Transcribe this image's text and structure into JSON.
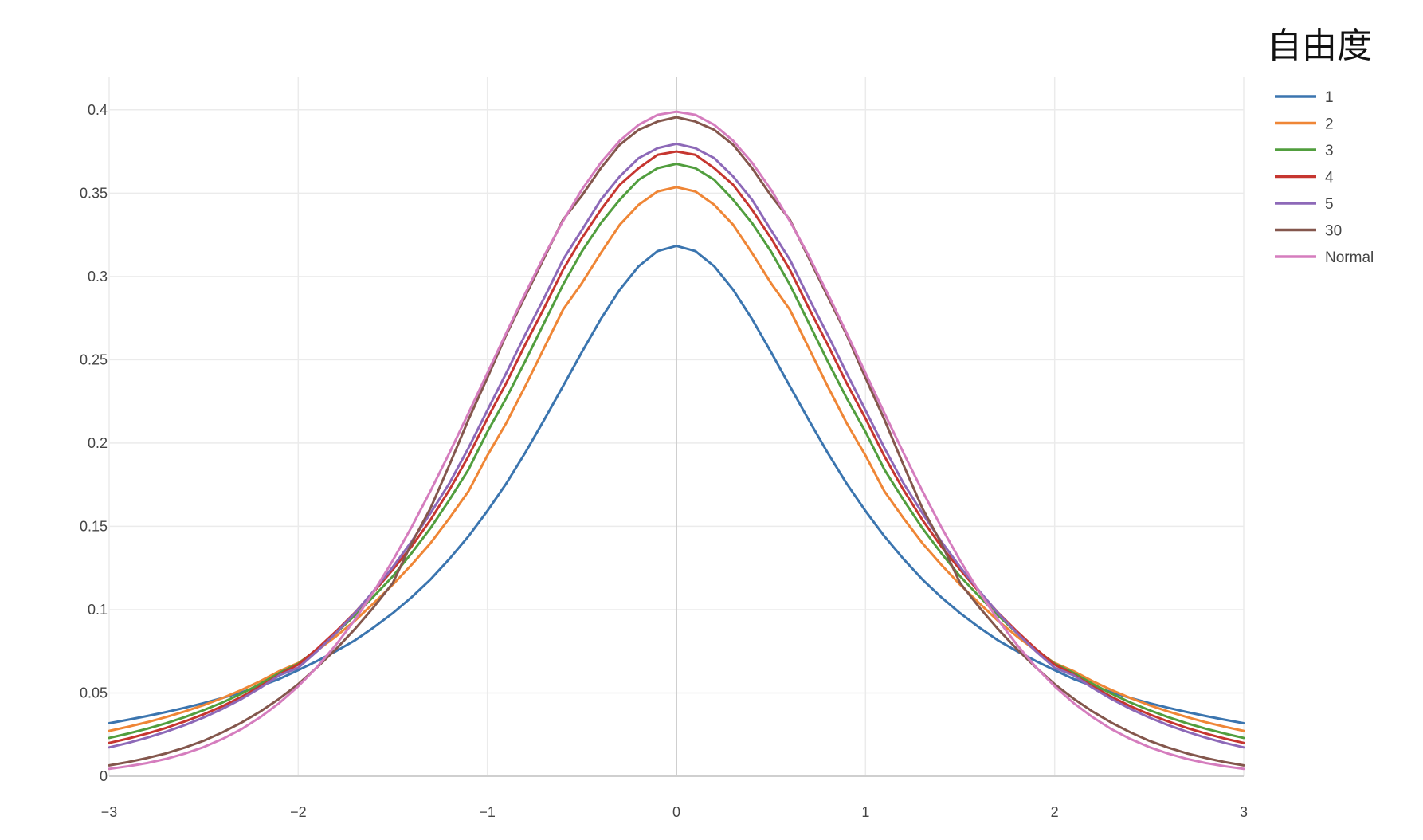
{
  "chart_data": {
    "type": "line",
    "title": "",
    "xlabel": "",
    "ylabel": "",
    "xlim": [
      -3,
      3
    ],
    "ylim": [
      0,
      0.42
    ],
    "grid": true,
    "legend": {
      "title": "自由度",
      "placement": "top-right"
    },
    "x_ticks": [
      -3,
      -2,
      -1,
      0,
      1,
      2,
      3
    ],
    "x_tick_labels": [
      "−3",
      "−2",
      "−1",
      "0",
      "1",
      "2",
      "3"
    ],
    "y_ticks": [
      0,
      0.05,
      0.1,
      0.15,
      0.2,
      0.25,
      0.3,
      0.35,
      0.4
    ],
    "y_tick_labels": [
      "0",
      "0.05",
      "0.1",
      "0.15",
      "0.2",
      "0.25",
      "0.3",
      "0.35",
      "0.4"
    ],
    "x": [
      -3,
      -2.9,
      -2.8,
      -2.7,
      -2.6,
      -2.5,
      -2.4,
      -2.3,
      -2.2,
      -2.1,
      -2,
      -1.9,
      -1.8,
      -1.7,
      -1.6,
      -1.5,
      -1.4,
      -1.3,
      -1.2,
      -1.1,
      -1,
      -0.9,
      -0.8,
      -0.7,
      -0.6,
      -0.5,
      -0.4,
      -0.3,
      -0.2,
      -0.1,
      0,
      0.1,
      0.2,
      0.3,
      0.4,
      0.5,
      0.6,
      0.7,
      0.8,
      0.9,
      1,
      1.1,
      1.2,
      1.3,
      1.4,
      1.5,
      1.6,
      1.7,
      1.8,
      1.9,
      2,
      2.1,
      2.2,
      2.3,
      2.4,
      2.5,
      2.6,
      2.7,
      2.8,
      2.9,
      3
    ],
    "series": [
      {
        "name": "1",
        "color": "#3b75af",
        "values": [
          0.0318,
          0.0339,
          0.0361,
          0.0385,
          0.0411,
          0.0439,
          0.047,
          0.0504,
          0.0542,
          0.0584,
          0.0637,
          0.0692,
          0.0751,
          0.0816,
          0.0894,
          0.0979,
          0.1075,
          0.1182,
          0.1305,
          0.144,
          0.1592,
          0.1757,
          0.1941,
          0.2138,
          0.2341,
          0.2546,
          0.2744,
          0.292,
          0.3061,
          0.3152,
          0.3183,
          0.3152,
          0.3061,
          0.292,
          0.2744,
          0.2546,
          0.2341,
          0.2138,
          0.1941,
          0.1757,
          0.1592,
          0.144,
          0.1305,
          0.1182,
          0.1075,
          0.0979,
          0.0894,
          0.0816,
          0.0751,
          0.0692,
          0.0637,
          0.0584,
          0.0542,
          0.0504,
          0.047,
          0.0439,
          0.0411,
          0.0385,
          0.0361,
          0.0339,
          0.0318
        ]
      },
      {
        "name": "2",
        "color": "#ef8636",
        "values": [
          0.0272,
          0.0297,
          0.0324,
          0.0355,
          0.0389,
          0.0427,
          0.047,
          0.0518,
          0.0571,
          0.0631,
          0.068,
          0.0755,
          0.084,
          0.0934,
          0.104,
          0.115,
          0.127,
          0.14,
          0.155,
          0.171,
          0.1925,
          0.212,
          0.234,
          0.257,
          0.28,
          0.296,
          0.314,
          0.331,
          0.343,
          0.351,
          0.3536,
          0.351,
          0.343,
          0.331,
          0.314,
          0.296,
          0.28,
          0.257,
          0.234,
          0.212,
          0.1925,
          0.171,
          0.155,
          0.14,
          0.127,
          0.115,
          0.104,
          0.0934,
          0.084,
          0.0755,
          0.068,
          0.0631,
          0.0571,
          0.0518,
          0.047,
          0.0427,
          0.0389,
          0.0355,
          0.0324,
          0.0297,
          0.0272
        ]
      },
      {
        "name": "3",
        "color": "#519e3e",
        "values": [
          0.023,
          0.0256,
          0.0285,
          0.0318,
          0.0355,
          0.0397,
          0.0443,
          0.0496,
          0.0555,
          0.062,
          0.0675,
          0.0762,
          0.086,
          0.0966,
          0.1081,
          0.12,
          0.134,
          0.149,
          0.166,
          0.184,
          0.2067,
          0.227,
          0.249,
          0.272,
          0.295,
          0.315,
          0.332,
          0.346,
          0.358,
          0.365,
          0.3676,
          0.365,
          0.358,
          0.346,
          0.332,
          0.315,
          0.295,
          0.272,
          0.249,
          0.227,
          0.2067,
          0.184,
          0.166,
          0.149,
          0.134,
          0.12,
          0.1081,
          0.0966,
          0.086,
          0.0762,
          0.0675,
          0.062,
          0.0555,
          0.0496,
          0.0443,
          0.0397,
          0.0355,
          0.0318,
          0.0285,
          0.0256,
          0.023
        ]
      },
      {
        "name": "4",
        "color": "#c63630",
        "values": [
          0.02,
          0.0226,
          0.0256,
          0.029,
          0.0329,
          0.0372,
          0.0421,
          0.0477,
          0.054,
          0.061,
          0.067,
          0.0765,
          0.087,
          0.0983,
          0.1108,
          0.124,
          0.138,
          0.154,
          0.172,
          0.192,
          0.2147,
          0.236,
          0.259,
          0.281,
          0.304,
          0.323,
          0.34,
          0.355,
          0.365,
          0.373,
          0.375,
          0.373,
          0.365,
          0.355,
          0.34,
          0.323,
          0.304,
          0.281,
          0.259,
          0.236,
          0.2147,
          0.192,
          0.172,
          0.154,
          0.138,
          0.124,
          0.1108,
          0.0983,
          0.087,
          0.0765,
          0.067,
          0.061,
          0.054,
          0.0477,
          0.0421,
          0.0372,
          0.0329,
          0.029,
          0.0256,
          0.0226,
          0.02
        ]
      },
      {
        "name": "5",
        "color": "#8d69b8",
        "values": [
          0.0173,
          0.02,
          0.0231,
          0.0267,
          0.0307,
          0.0353,
          0.0405,
          0.0464,
          0.0531,
          0.0606,
          0.0651,
          0.0751,
          0.086,
          0.098,
          0.1114,
          0.1256,
          0.141,
          0.158,
          0.176,
          0.197,
          0.2196,
          0.242,
          0.265,
          0.287,
          0.31,
          0.3279,
          0.346,
          0.36,
          0.371,
          0.377,
          0.3796,
          0.377,
          0.371,
          0.36,
          0.346,
          0.3279,
          0.31,
          0.287,
          0.265,
          0.242,
          0.2196,
          0.197,
          0.176,
          0.158,
          0.141,
          0.1256,
          0.1114,
          0.098,
          0.086,
          0.0751,
          0.0651,
          0.0606,
          0.0531,
          0.0464,
          0.0405,
          0.0353,
          0.0307,
          0.0267,
          0.0231,
          0.02,
          0.0173
        ]
      },
      {
        "name": "30",
        "color": "#84574d",
        "values": [
          0.0065,
          0.0085,
          0.0109,
          0.0137,
          0.0172,
          0.0213,
          0.0264,
          0.0322,
          0.0389,
          0.0466,
          0.0553,
          0.0654,
          0.0764,
          0.0884,
          0.1016,
          0.116,
          0.14,
          0.161,
          0.187,
          0.214,
          0.2391,
          0.265,
          0.288,
          0.311,
          0.334,
          0.3485,
          0.365,
          0.379,
          0.388,
          0.393,
          0.3956,
          0.393,
          0.388,
          0.379,
          0.365,
          0.3485,
          0.334,
          0.311,
          0.288,
          0.265,
          0.2391,
          0.214,
          0.187,
          0.161,
          0.14,
          0.116,
          0.1016,
          0.0884,
          0.0764,
          0.0654,
          0.0553,
          0.0466,
          0.0389,
          0.0322,
          0.0264,
          0.0213,
          0.0172,
          0.0137,
          0.0109,
          0.0085,
          0.0065
        ]
      },
      {
        "name": "Normal",
        "color": "#d57dbe",
        "values": [
          0.0044,
          0.006,
          0.0079,
          0.0104,
          0.0136,
          0.0175,
          0.0224,
          0.0283,
          0.0355,
          0.044,
          0.054,
          0.0656,
          0.079,
          0.094,
          0.1109,
          0.1295,
          0.1497,
          0.1714,
          0.1942,
          0.2179,
          0.242,
          0.2661,
          0.2897,
          0.3123,
          0.3332,
          0.3521,
          0.3683,
          0.3814,
          0.391,
          0.397,
          0.3989,
          0.397,
          0.391,
          0.3814,
          0.3683,
          0.3521,
          0.3332,
          0.3123,
          0.2897,
          0.2661,
          0.242,
          0.2179,
          0.1942,
          0.1714,
          0.1497,
          0.1295,
          0.1109,
          0.094,
          0.079,
          0.0656,
          0.054,
          0.044,
          0.0355,
          0.0283,
          0.0224,
          0.0175,
          0.0136,
          0.0104,
          0.0079,
          0.006,
          0.0044
        ]
      }
    ]
  }
}
